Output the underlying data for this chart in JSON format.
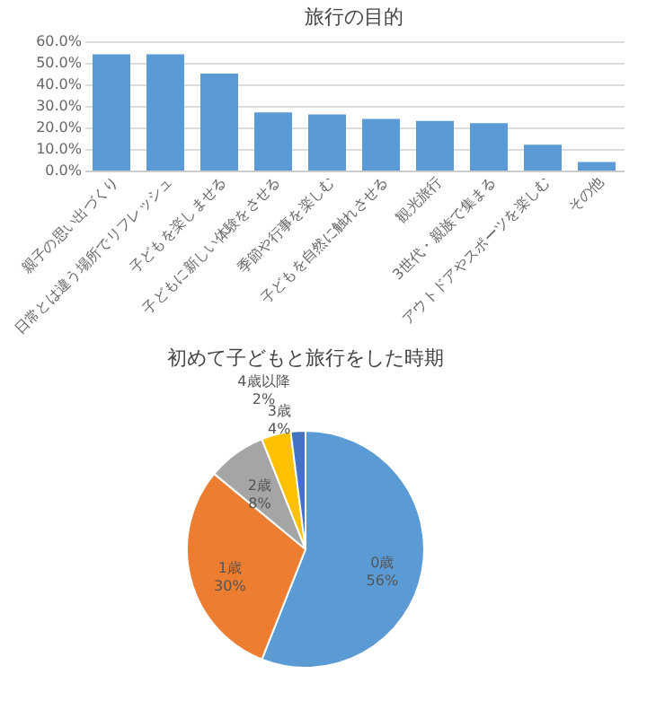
{
  "chart_data": [
    {
      "type": "bar",
      "title": "旅行の目的",
      "categories": [
        "親子の思い出づくり",
        "日常とは違う場所でリフレッシュ",
        "子どもを楽しませる",
        "子どもに新しい体験をさせる",
        "季節や行事を楽しむ",
        "子どもを自然に触れさせる",
        "観光旅行",
        "3世代・親族で集まる",
        "アウトドアやスポーツを楽しむ",
        "その他"
      ],
      "values": [
        54,
        54,
        45,
        27,
        26,
        24,
        23,
        22,
        12,
        4
      ],
      "color": "#5b9bd5",
      "ylim": [
        0,
        60
      ],
      "yticks": [
        {
          "value": 0,
          "label": "0.0%"
        },
        {
          "value": 10,
          "label": "10.0%"
        },
        {
          "value": 20,
          "label": "20.0%"
        },
        {
          "value": 30,
          "label": "30.0%"
        },
        {
          "value": 40,
          "label": "40.0%"
        },
        {
          "value": 50,
          "label": "50.0%"
        },
        {
          "value": 60,
          "label": "60.0%"
        }
      ],
      "grid": "y"
    },
    {
      "type": "pie",
      "title": "初めて子どもと旅行をした時期",
      "categories": [
        "0歳",
        "1歳",
        "2歳",
        "3歳",
        "4歳以降"
      ],
      "values": [
        56,
        30,
        8,
        4,
        2
      ],
      "value_labels": [
        "56%",
        "30%",
        "8%",
        "4%",
        "2%"
      ],
      "colors": [
        "#5b9bd5",
        "#ed7d31",
        "#a5a5a5",
        "#ffc000",
        "#4472c4"
      ]
    }
  ]
}
